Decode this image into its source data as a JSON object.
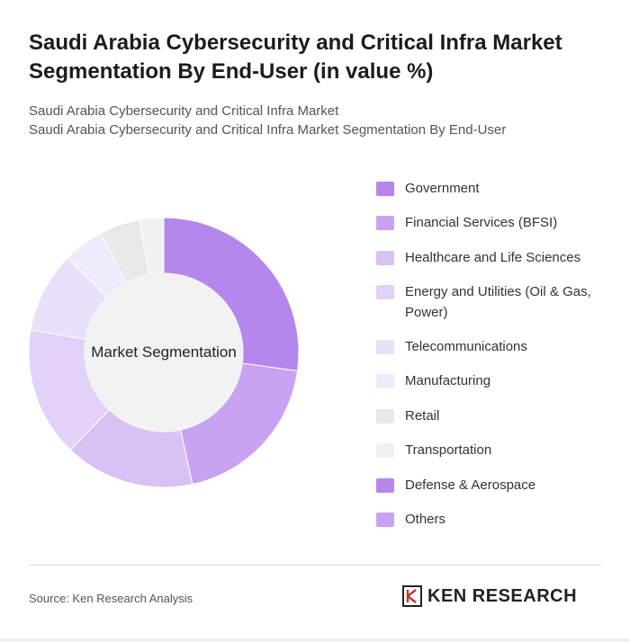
{
  "title": "Saudi Arabia Cybersecurity and Critical Infra Market Segmentation By End-User (in value %)",
  "subtitle_line1": "Saudi Arabia Cybersecurity and Critical Infra Market",
  "subtitle_line2": "Saudi Arabia Cybersecurity and Critical Infra Market Segmentation By End-User",
  "source": "Source: Ken Research Analysis",
  "logo_text": "KEN RESEARCH",
  "chart_data": {
    "type": "pie",
    "donut": true,
    "center_label": "Market Segmentation",
    "categories": [
      "Government",
      "Financial Services (BFSI)",
      "Healthcare and Life Sciences",
      "Energy and Utilities (Oil & Gas, Power)",
      "Telecommunications",
      "Manufacturing",
      "Retail",
      "Transportation",
      "Defense & Aerospace",
      "Others"
    ],
    "values": [
      28,
      20,
      16,
      16,
      10,
      5,
      5,
      3,
      0,
      0
    ],
    "colors": [
      "#b587ec",
      "#c8a3f2",
      "#d9c1f6",
      "#e2d1f8",
      "#ebe0fa",
      "#f0ebfc",
      "#e8e8e8",
      "#f1f1f1",
      "#b587ec",
      "#c8a3f2"
    ],
    "legend_position": "right"
  }
}
